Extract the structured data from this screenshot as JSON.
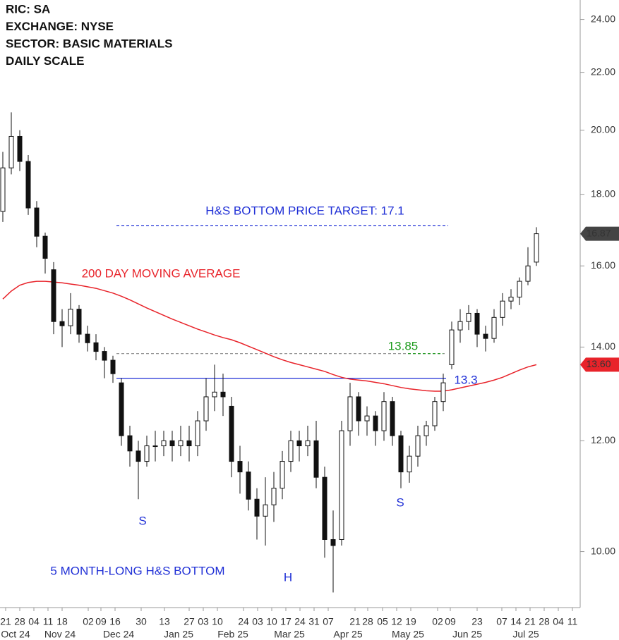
{
  "chart_data": {
    "type": "candlestick",
    "info": [
      "RIC:  SA",
      "EXCHANGE: NYSE",
      "SECTOR:  BASIC MATERIALS",
      "DAILY SCALE"
    ],
    "log_scale": true,
    "ylim": [
      9.12,
      24.78
    ],
    "yticks": [
      {
        "value": 10,
        "label": "10.00"
      },
      {
        "value": 12,
        "label": "12.00"
      },
      {
        "value": 14,
        "label": "14.00"
      },
      {
        "value": 16,
        "label": "16.00"
      },
      {
        "value": 18,
        "label": "18.00"
      },
      {
        "value": 20,
        "label": "20.00"
      },
      {
        "value": 22,
        "label": "22.00"
      },
      {
        "value": 24,
        "label": "24.00"
      }
    ],
    "xticks": [
      "21",
      "28",
      "04",
      "11",
      "18",
      "02",
      "09",
      "16",
      "30",
      "13",
      "27",
      "03",
      "10",
      "24",
      "03",
      "10",
      "17",
      "24",
      "31",
      "07",
      "21",
      "28",
      "05",
      "12",
      "19",
      "02",
      "09",
      "23",
      "07",
      "14",
      "21",
      "28",
      "04",
      "11"
    ],
    "months": [
      "Oct 24",
      "Nov 24",
      "Dec 24",
      "Jan 25",
      "Feb 25",
      "Mar 25",
      "Apr 25",
      "May 25",
      "Jun 25",
      "Jul 25"
    ],
    "open": [
      17.5,
      18.8,
      19.8,
      19.0,
      17.6,
      16.8,
      15.9,
      14.6,
      14.5,
      14.9,
      14.3,
      14.1,
      13.9,
      13.7,
      13.2,
      12.1,
      11.8,
      11.6,
      11.9,
      11.9,
      12.0,
      11.9,
      12.0,
      11.9,
      12.4,
      12.9,
      13.0,
      12.7,
      11.6,
      11.4,
      10.9,
      10.6,
      10.8,
      11.1,
      11.6,
      12.0,
      11.9,
      12.0,
      11.3,
      10.2,
      10.2,
      12.2,
      12.9,
      12.4,
      12.5,
      12.2,
      12.8,
      12.1,
      11.4,
      11.7,
      12.1,
      12.3,
      12.8,
      13.6,
      14.4,
      14.6,
      14.8,
      14.3,
      14.2,
      14.7,
      15.1,
      15.2,
      15.6,
      16.1
    ],
    "high": [
      19.3,
      20.6,
      20.0,
      19.2,
      17.8,
      16.9,
      16.1,
      14.9,
      15.3,
      15.0,
      14.5,
      14.3,
      14.0,
      13.8,
      13.3,
      12.3,
      12.0,
      12.1,
      12.2,
      12.2,
      12.2,
      12.3,
      12.3,
      12.6,
      13.3,
      13.6,
      13.4,
      12.9,
      11.9,
      11.6,
      11.1,
      11.3,
      11.4,
      11.8,
      12.2,
      12.2,
      12.3,
      12.4,
      11.5,
      10.7,
      12.4,
      13.2,
      13.0,
      12.7,
      12.6,
      13.0,
      12.9,
      12.2,
      11.9,
      12.3,
      12.4,
      12.9,
      13.4,
      14.6,
      14.9,
      15.0,
      14.9,
      14.5,
      14.9,
      15.3,
      15.4,
      15.7,
      16.5,
      17.05
    ],
    "low": [
      17.2,
      18.6,
      18.7,
      17.4,
      16.5,
      15.8,
      14.3,
      14.0,
      14.3,
      14.1,
      13.9,
      13.7,
      13.3,
      13.2,
      11.9,
      11.5,
      10.9,
      11.5,
      11.6,
      11.7,
      11.6,
      11.7,
      11.6,
      11.7,
      12.2,
      12.6,
      12.5,
      11.3,
      11.0,
      10.7,
      10.2,
      10.1,
      10.5,
      10.9,
      11.4,
      11.6,
      11.7,
      11.1,
      9.9,
      9.35,
      10.1,
      11.9,
      12.1,
      12.1,
      11.9,
      12.0,
      11.9,
      11.1,
      11.2,
      11.5,
      11.9,
      12.2,
      12.6,
      13.5,
      14.1,
      14.4,
      14.0,
      13.9,
      14.1,
      14.5,
      14.9,
      15.0,
      15.5,
      16.0
    ],
    "close": [
      18.8,
      19.8,
      19.0,
      17.6,
      16.8,
      16.2,
      14.6,
      14.5,
      14.9,
      14.3,
      14.1,
      13.9,
      13.7,
      13.4,
      12.1,
      11.8,
      11.6,
      11.9,
      11.9,
      12.0,
      11.9,
      12.0,
      11.9,
      12.4,
      12.9,
      13.0,
      12.9,
      11.6,
      11.4,
      10.9,
      10.6,
      10.8,
      11.1,
      11.6,
      12.0,
      11.9,
      12.0,
      11.3,
      10.2,
      10.1,
      12.2,
      12.9,
      12.4,
      12.5,
      12.2,
      12.8,
      12.1,
      11.4,
      11.7,
      12.1,
      12.3,
      12.8,
      13.2,
      14.4,
      14.6,
      14.8,
      14.3,
      14.2,
      14.7,
      15.1,
      15.2,
      15.6,
      16.0,
      16.87
    ],
    "moving_average": {
      "color": "#e8232a",
      "values": [
        15.15,
        15.35,
        15.5,
        15.57,
        15.6,
        15.6,
        15.58,
        15.56,
        15.53,
        15.5,
        15.46,
        15.42,
        15.36,
        15.3,
        15.22,
        15.13,
        15.03,
        14.93,
        14.84,
        14.75,
        14.66,
        14.58,
        14.5,
        14.42,
        14.35,
        14.28,
        14.22,
        14.17,
        14.1,
        14.02,
        13.94,
        13.86,
        13.78,
        13.71,
        13.65,
        13.6,
        13.55,
        13.5,
        13.45,
        13.38,
        13.32,
        13.28,
        13.26,
        13.24,
        13.21,
        13.18,
        13.14,
        13.1,
        13.07,
        13.05,
        13.03,
        13.02,
        13.02,
        13.05,
        13.09,
        13.13,
        13.17,
        13.21,
        13.26,
        13.32,
        13.4,
        13.48,
        13.55,
        13.6
      ]
    },
    "levels": [
      {
        "value": 17.1,
        "color": "#1f2fd6",
        "dash": true
      },
      {
        "value": 13.85,
        "color": "#888888",
        "dash": true
      },
      {
        "value": 13.85,
        "color": "#1a9a1a",
        "dash": true
      },
      {
        "value": 13.3,
        "color": "#1f2fd6",
        "dash": false
      }
    ],
    "annotations": [
      {
        "text": "H&S BOTTOM PRICE TARGET: 17.1",
        "color": "#1f2fd6"
      },
      {
        "text": "200 DAY MOVING AVERAGE",
        "color": "#e8232a"
      },
      {
        "text": "13.85",
        "color": "#1a9a1a"
      },
      {
        "text": "13.3",
        "color": "#1f2fd6"
      },
      {
        "text": "S",
        "color": "#1f2fd6"
      },
      {
        "text": "S",
        "color": "#1f2fd6"
      },
      {
        "text": "H",
        "color": "#1f2fd6"
      },
      {
        "text": "5 MONTH-LONG H&S BOTTOM",
        "color": "#1f2fd6"
      }
    ],
    "price_tags": [
      {
        "value": 16.87,
        "color": "#444444"
      },
      {
        "value": 13.6,
        "label": "13.60",
        "color": "#e8232a"
      }
    ]
  }
}
